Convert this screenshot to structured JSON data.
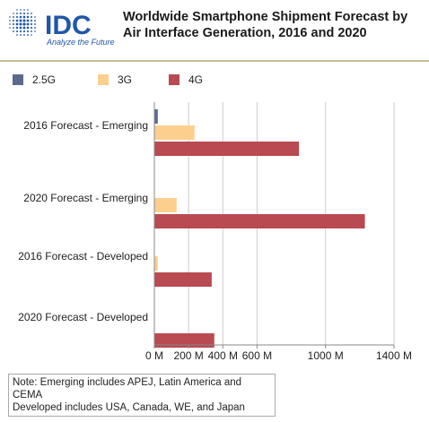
{
  "header": {
    "logo": {
      "text": "IDC",
      "tagline": "Analyze the Future",
      "colors": {
        "brand": "#1f57a8",
        "globe_dot": "#3b6fb6"
      }
    },
    "title": "Worldwide Smartphone Shipment Forecast by Air Interface Generation, 2016 and 2020"
  },
  "colors": {
    "rule": "#c9bd95",
    "axis": "#888888",
    "grid": "#cccccc"
  },
  "chart_data": {
    "type": "bar",
    "orientation": "horizontal",
    "title": "Worldwide Smartphone Shipment Forecast by Air Interface Generation, 2016 and 2020",
    "categories": [
      "2016 Forecast - Emerging",
      "2020 Forecast - Emerging",
      "2016 Forecast - Developed",
      "2020 Forecast - Developed"
    ],
    "series": [
      {
        "name": "2.5G",
        "color": "#5b6b8c",
        "values": [
          20,
          0,
          0,
          0
        ]
      },
      {
        "name": "3G",
        "color": "#fccf8f",
        "values": [
          235,
          130,
          20,
          0
        ]
      },
      {
        "name": "4G",
        "color": "#b94a51",
        "values": [
          845,
          1230,
          335,
          350
        ]
      }
    ],
    "x_unit_suffix": " M",
    "xlim": [
      0,
      1400
    ],
    "xticks": [
      0,
      200,
      400,
      600,
      1000,
      1400
    ],
    "xtick_labels": [
      "0 M",
      "200 M",
      "400 M",
      "600 M",
      "1000 M",
      "1400 M"
    ],
    "xlabel": "",
    "ylabel": "",
    "legend_position": "top-left",
    "grid": true
  },
  "note": {
    "line1": "Note: Emerging includes APEJ, Latin America and CEMA",
    "line2": "Developed includes USA, Canada, WE, and Japan"
  }
}
